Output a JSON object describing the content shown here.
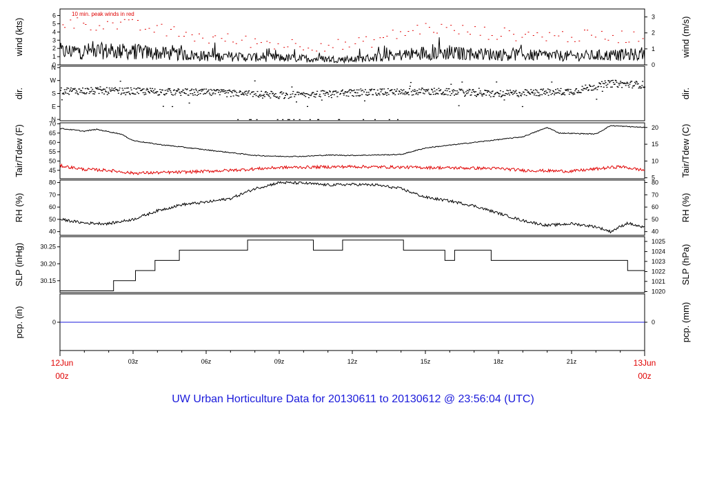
{
  "title": "UW Urban Horticulture Data for 20130611  to  20130612 @ 23:56:04  (UTC)",
  "colors": {
    "primary": "#000000",
    "peak": "#e00000",
    "dew": "#e00000",
    "precip": "#1a1adb",
    "title": "#1a1adb"
  },
  "x_axis": {
    "range_hours": [
      0,
      24
    ],
    "start_label": [
      "12Jun",
      "00z"
    ],
    "end_label": [
      "13Jun",
      "00z"
    ],
    "ticks": [
      {
        "h": 3,
        "label": "03z"
      },
      {
        "h": 6,
        "label": "06z"
      },
      {
        "h": 9,
        "label": "09z"
      },
      {
        "h": 12,
        "label": "12z"
      },
      {
        "h": 15,
        "label": "15z"
      },
      {
        "h": 18,
        "label": "18z"
      },
      {
        "h": 21,
        "label": "21z"
      }
    ]
  },
  "chart_data": [
    {
      "type": "line",
      "ylabel": "wind (kts)",
      "ylabel_right": "wind (m/s)",
      "ylim": [
        0,
        6.8
      ],
      "yticks": [
        0,
        1,
        2,
        3,
        4,
        5,
        6
      ],
      "right_ticks": [
        {
          "label": "0",
          "v": 0
        },
        {
          "label": "1",
          "v": 1.944
        },
        {
          "label": "2",
          "v": 3.888
        },
        {
          "label": "3",
          "v": 5.832
        }
      ],
      "annotation": "10 min. peak winds in red",
      "profile": [
        [
          0,
          1.5
        ],
        [
          1.5,
          1.6
        ],
        [
          3,
          1.5
        ],
        [
          6,
          1.0
        ],
        [
          9,
          0.8
        ],
        [
          12,
          0.6
        ],
        [
          15,
          1.4
        ],
        [
          18,
          1.2
        ],
        [
          21,
          1.0
        ],
        [
          24,
          1.2
        ]
      ],
      "peak_profile": [
        [
          0,
          5.2
        ],
        [
          3,
          4.8
        ],
        [
          6,
          3.3
        ],
        [
          9,
          2.6
        ],
        [
          12,
          2.4
        ],
        [
          15,
          4.6
        ],
        [
          18,
          3.8
        ],
        [
          21,
          3.5
        ],
        [
          24,
          3.5
        ]
      ]
    },
    {
      "type": "scatter",
      "ylabel": "dir.",
      "ylabel_right": "dir.",
      "ylim": [
        -0.1,
        4.1
      ],
      "yticks": [
        {
          "label": "N",
          "v": 0
        },
        {
          "label": "E",
          "v": 1
        },
        {
          "label": "S",
          "v": 2
        },
        {
          "label": "W",
          "v": 3
        },
        {
          "label": "N",
          "v": 4
        }
      ],
      "profile": [
        [
          0,
          2.25
        ],
        [
          3,
          2.2
        ],
        [
          6,
          2.1
        ],
        [
          9,
          1.9
        ],
        [
          12,
          2.1
        ],
        [
          15,
          2.2
        ],
        [
          18,
          2.0
        ],
        [
          21,
          2.2
        ],
        [
          22.5,
          2.8
        ],
        [
          24,
          2.7
        ]
      ]
    },
    {
      "type": "line",
      "ylabel": "Tair/Tdew (F)",
      "ylabel_right": "Tair/Tdew (C)",
      "ylim": [
        40.5,
        70.5
      ],
      "yticks": [
        45,
        50,
        55,
        60,
        65,
        70
      ],
      "right_ticks": [
        {
          "label": "5",
          "v": 41
        },
        {
          "label": "10",
          "v": 50
        },
        {
          "label": "15",
          "v": 59
        },
        {
          "label": "20",
          "v": 68
        }
      ],
      "series": [
        {
          "name": "Tair",
          "points": [
            [
              0,
              67.5
            ],
            [
              1,
              66
            ],
            [
              1.5,
              67
            ],
            [
              2.5,
              64.5
            ],
            [
              3,
              61
            ],
            [
              4,
              59
            ],
            [
              6,
              56
            ],
            [
              8,
              53
            ],
            [
              9,
              52.5
            ],
            [
              10,
              52.5
            ],
            [
              11,
              53.2
            ],
            [
              12,
              53
            ],
            [
              14,
              53.5
            ],
            [
              15,
              57
            ],
            [
              17,
              60
            ],
            [
              19,
              63
            ],
            [
              20,
              68
            ],
            [
              20.5,
              65
            ],
            [
              22,
              64.5
            ],
            [
              22.6,
              69
            ],
            [
              24,
              68
            ]
          ]
        },
        {
          "name": "Tdew",
          "points": [
            [
              0,
              47.5
            ],
            [
              1,
              45.5
            ],
            [
              2,
              45
            ],
            [
              3,
              43.5
            ],
            [
              5,
              44
            ],
            [
              7,
              45
            ],
            [
              9,
              46.5
            ],
            [
              12,
              47
            ],
            [
              15,
              46.5
            ],
            [
              18,
              46
            ],
            [
              19,
              45
            ],
            [
              21,
              44.5
            ],
            [
              23,
              47
            ],
            [
              24,
              45
            ]
          ]
        }
      ]
    },
    {
      "type": "line",
      "ylabel": "RH (%)",
      "ylabel_right": "RH (%)",
      "ylim": [
        37,
        82
      ],
      "yticks": [
        40,
        50,
        60,
        70,
        80
      ],
      "right_ticks": [
        {
          "label": "40",
          "v": 40
        },
        {
          "label": "50",
          "v": 50
        },
        {
          "label": "60",
          "v": 60
        },
        {
          "label": "70",
          "v": 70
        },
        {
          "label": "80",
          "v": 80
        }
      ],
      "points": [
        [
          0,
          50
        ],
        [
          1,
          47
        ],
        [
          2,
          46.5
        ],
        [
          3,
          50
        ],
        [
          4,
          57
        ],
        [
          5,
          62
        ],
        [
          6,
          64
        ],
        [
          7,
          67
        ],
        [
          8,
          75
        ],
        [
          9,
          80
        ],
        [
          10,
          79.5
        ],
        [
          11,
          78
        ],
        [
          12,
          78.5
        ],
        [
          13,
          78
        ],
        [
          14,
          75
        ],
        [
          15,
          68
        ],
        [
          16,
          65
        ],
        [
          17,
          61
        ],
        [
          18,
          55
        ],
        [
          19,
          49
        ],
        [
          20,
          45
        ],
        [
          21,
          46.5
        ],
        [
          22,
          44
        ],
        [
          22.6,
          40
        ],
        [
          23.3,
          47
        ],
        [
          24,
          43
        ]
      ]
    },
    {
      "type": "line",
      "ylabel": "SLP (inHg)",
      "ylabel_right": "SLP (hPa)",
      "ylim": [
        30.115,
        30.28
      ],
      "yticks": [
        30.15,
        30.2,
        30.25
      ],
      "ytick_labels": [
        "30.15",
        "30.20",
        "30.25"
      ],
      "right_ticks": [
        {
          "label": "1020",
          "v": 30.118
        },
        {
          "label": "1021",
          "v": 30.148
        },
        {
          "label": "1022",
          "v": 30.177
        },
        {
          "label": "1023",
          "v": 30.207
        },
        {
          "label": "1024",
          "v": 30.236
        },
        {
          "label": "1025",
          "v": 30.266
        }
      ],
      "steps": [
        [
          0,
          30.12
        ],
        [
          2.2,
          30.15
        ],
        [
          3.1,
          30.18
        ],
        [
          3.9,
          30.21
        ],
        [
          4.9,
          30.24
        ],
        [
          7.7,
          30.27
        ],
        [
          10.4,
          30.24
        ],
        [
          11.6,
          30.27
        ],
        [
          14.1,
          30.24
        ],
        [
          15.8,
          30.21
        ],
        [
          16.2,
          30.24
        ],
        [
          17.7,
          30.21
        ],
        [
          23.3,
          30.18
        ],
        [
          24,
          30.18
        ]
      ]
    },
    {
      "type": "line",
      "ylabel": "pcp. (in)",
      "ylabel_right": "pcp. (mm)",
      "ylim": [
        -1,
        1
      ],
      "yticks": [
        0
      ],
      "right_ticks": [
        {
          "label": "0",
          "v": 0
        }
      ],
      "points": [
        [
          0,
          0
        ],
        [
          24,
          0
        ]
      ]
    }
  ]
}
